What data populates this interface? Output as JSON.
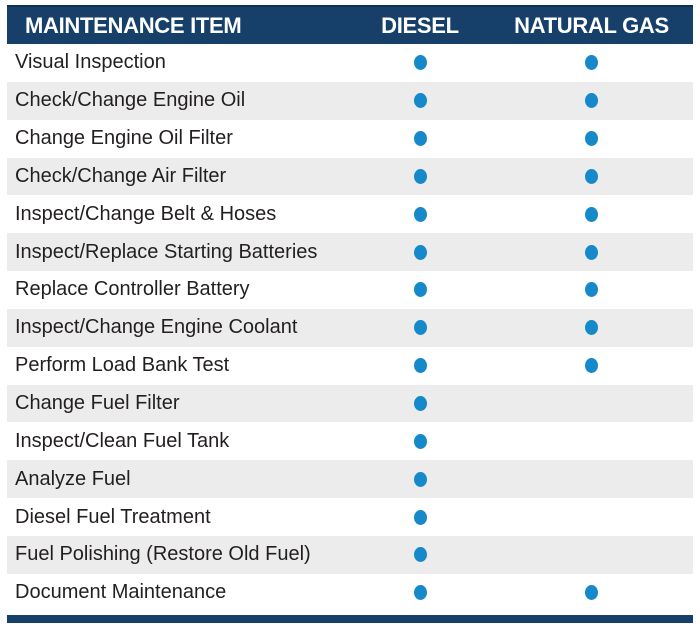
{
  "chart_data": {
    "type": "table",
    "title": "",
    "columns": [
      "MAINTENANCE ITEM",
      "DIESEL",
      "NATURAL GAS"
    ],
    "marker": "filled-dot",
    "grid": "striped-rows",
    "legend_position": "none",
    "rows": [
      {
        "item": "Visual Inspection",
        "diesel": true,
        "natural_gas": true
      },
      {
        "item": "Check/Change Engine Oil",
        "diesel": true,
        "natural_gas": true
      },
      {
        "item": "Change Engine Oil Filter",
        "diesel": true,
        "natural_gas": true
      },
      {
        "item": "Check/Change Air Filter",
        "diesel": true,
        "natural_gas": true
      },
      {
        "item": "Inspect/Change Belt & Hoses",
        "diesel": true,
        "natural_gas": true
      },
      {
        "item": "Inspect/Replace Starting Batteries",
        "diesel": true,
        "natural_gas": true
      },
      {
        "item": "Replace Controller Battery",
        "diesel": true,
        "natural_gas": true
      },
      {
        "item": "Inspect/Change Engine Coolant",
        "diesel": true,
        "natural_gas": true
      },
      {
        "item": "Perform Load Bank Test",
        "diesel": true,
        "natural_gas": true
      },
      {
        "item": "Change Fuel Filter",
        "diesel": true,
        "natural_gas": false
      },
      {
        "item": "Inspect/Clean Fuel Tank",
        "diesel": true,
        "natural_gas": false
      },
      {
        "item": "Analyze Fuel",
        "diesel": true,
        "natural_gas": false
      },
      {
        "item": "Diesel Fuel Treatment",
        "diesel": true,
        "natural_gas": false
      },
      {
        "item": "Fuel Polishing (Restore Old Fuel)",
        "diesel": true,
        "natural_gas": false
      },
      {
        "item": "Document Maintenance",
        "diesel": true,
        "natural_gas": true
      }
    ]
  },
  "colors": {
    "header_background": "#164069",
    "header_top_edge": "#0d3152",
    "header_text": "#FFFFFF",
    "dot": "#1689CA",
    "row_stripe": "#ECECEC",
    "row_text": "#231F20",
    "bottom_bar": "#164069"
  },
  "icons": {
    "applies_marker": "dot-icon"
  }
}
